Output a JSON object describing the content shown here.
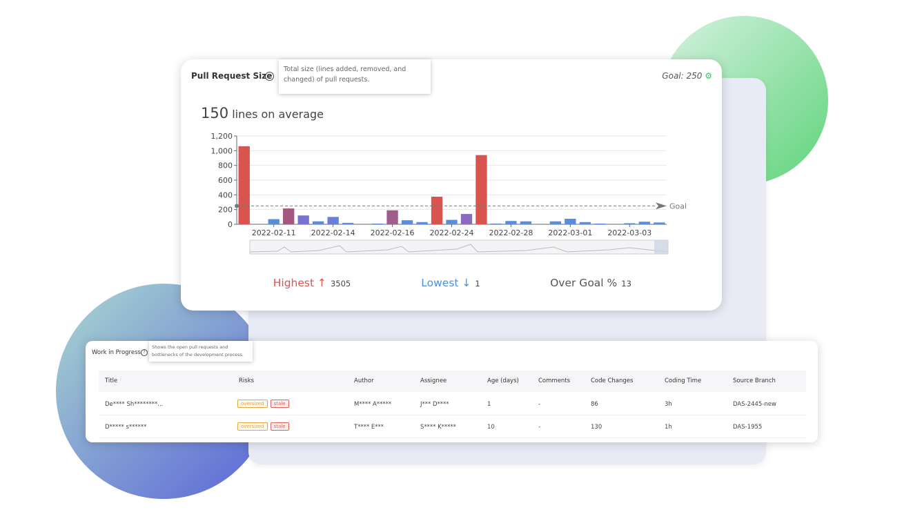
{
  "card": {
    "title": "Pull Request Size",
    "tooltip": "Total size (lines added, removed, and changed) of pull requests.",
    "goal_text": "Goal:",
    "average": 150,
    "average_text": "lines on average",
    "stats": [
      {
        "label": "Highest ↑",
        "value": 3505,
        "color": "#d9534f"
      },
      {
        "label": "Lowest ↓",
        "value": 1,
        "color": "#4a90d9"
      },
      {
        "label": "Over Goal %",
        "value": 13,
        "color": "#555555"
      }
    ]
  },
  "chart_data": {
    "type": "bar",
    "categories": [
      null,
      null,
      "2022-02-11",
      null,
      null,
      null,
      "2022-02-14",
      null,
      null,
      null,
      "2022-02-16",
      null,
      null,
      null,
      "2022-02-24",
      null,
      null,
      null,
      "2022-02-28",
      null,
      null,
      null,
      "2022-03-01",
      null,
      null,
      null,
      "2022-03-03",
      null,
      null
    ],
    "values": [
      1060,
      0,
      70,
      215,
      120,
      40,
      100,
      20,
      0,
      10,
      190,
      55,
      30,
      375,
      60,
      140,
      940,
      10,
      45,
      40,
      0,
      40,
      75,
      30,
      10,
      0,
      15,
      35,
      25
    ],
    "colors": [
      "#d9534f",
      "#5b8ddb",
      "#5b8ddb",
      "#a4577f",
      "#7b72d0",
      "#5b8ddb",
      "#6b7fd6",
      "#5b8ddb",
      "#5b8ddb",
      "#5b8ddb",
      "#a05c8c",
      "#5b8ddb",
      "#5b8ddb",
      "#d9534f",
      "#5b8ddb",
      "#8a6bc0",
      "#d9534f",
      "#5b8ddb",
      "#5b8ddb",
      "#5b8ddb",
      "#5b8ddb",
      "#5b8ddb",
      "#5b8ddb",
      "#5b8ddb",
      "#5b8ddb",
      "#5b8ddb",
      "#5b8ddb",
      "#5b8ddb",
      "#5b8ddb"
    ],
    "ylim": [
      0,
      1200
    ],
    "yticks": [
      0,
      200,
      400,
      600,
      800,
      {
        "value": 1000,
        "label": "1,000"
      },
      {
        "value": 1200,
        "label": "1,200"
      }
    ],
    "grid": true,
    "goal": 250,
    "goal_label": "Goal"
  },
  "table": {
    "title": "Work in Progress",
    "tooltip": "Shows the open pull requests and bottlenecks of the development process.",
    "columns": [
      "Title",
      "Risks",
      "Author",
      "Assignee",
      "Age (days)",
      "Comments",
      "Code Changes",
      "Coding Time",
      "Source Branch"
    ],
    "rows": [
      [
        "De**** Sh********...",
        [
          "oversized",
          "stale"
        ],
        "M**** A*****",
        "J*** D****",
        "1",
        "-",
        "86",
        "3h",
        "DAS-2445-new"
      ],
      [
        "D***** s******",
        [
          "oversized",
          "stale"
        ],
        "T**** E***",
        "S**** K*****",
        "10",
        "-",
        "130",
        "1h",
        "DAS-1955"
      ]
    ]
  }
}
